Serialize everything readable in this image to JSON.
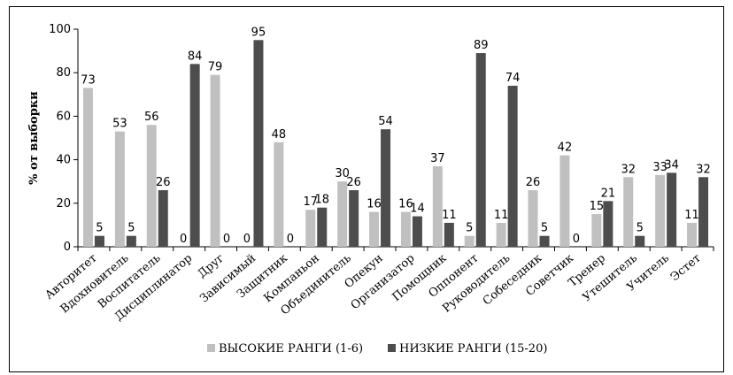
{
  "chart_data": {
    "type": "bar",
    "title": "",
    "xlabel": "",
    "ylabel": "% от выборки",
    "ylim": [
      0,
      100
    ],
    "yticks": [
      0,
      20,
      40,
      60,
      80,
      100
    ],
    "grid": false,
    "legend_position": "bottom",
    "categories": [
      "Авторитет",
      "Вдохновитель",
      "Воспитатель",
      "Дисциплинатор",
      "Друг",
      "Зависимый",
      "Защитник",
      "Компаньон",
      "Объединитель",
      "Опекун",
      "Организатор",
      "Помощник",
      "Оппонент",
      "Руководитель",
      "Собеседник",
      "Советчик",
      "Тренер",
      "Утешитель",
      "Учитель",
      "Эстет"
    ],
    "series": [
      {
        "name": "ВЫСОКИЕ РАНГИ (1-6)",
        "color": "#c0c0c0",
        "values": [
          73,
          53,
          56,
          0,
          79,
          0,
          48,
          17,
          30,
          16,
          16,
          37,
          5,
          11,
          26,
          42,
          15,
          32,
          33,
          11
        ]
      },
      {
        "name": "НИЗКИЕ РАНГИ (15-20)",
        "color": "#4d4d4d",
        "values": [
          5,
          5,
          26,
          84,
          0,
          95,
          0,
          18,
          26,
          54,
          14,
          11,
          89,
          74,
          5,
          0,
          21,
          5,
          34,
          32
        ]
      }
    ]
  }
}
